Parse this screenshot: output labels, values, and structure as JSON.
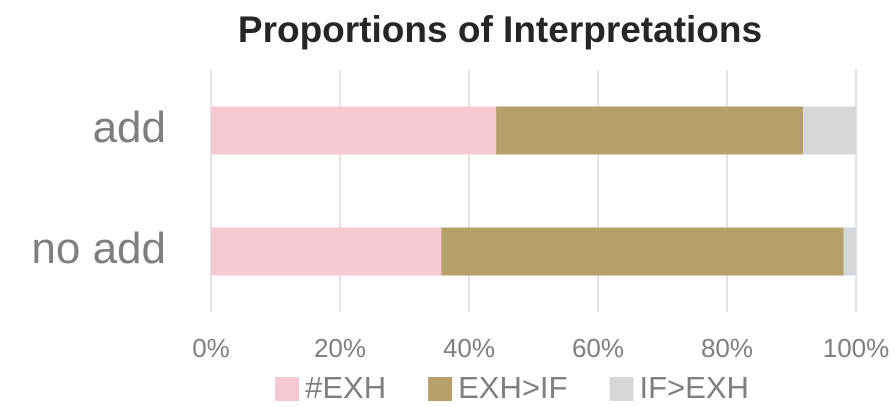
{
  "chart_data": {
    "type": "stacked_barh",
    "title": "Proportions of Interpretations",
    "categories": [
      "add",
      "no add"
    ],
    "series": [
      {
        "name": "#EXH",
        "color": "#f5c8d2",
        "values": [
          44.2,
          35.7
        ]
      },
      {
        "name": "EXH>IF",
        "color": "#b5a06a",
        "values": [
          47.6,
          62.4
        ]
      },
      {
        "name": "IF>EXH",
        "color": "#d5d8db",
        "values": [
          8.2,
          1.9
        ]
      }
    ],
    "xlim": [
      0,
      100
    ],
    "xticks": [
      {
        "value": 0,
        "label": "0%"
      },
      {
        "value": 20,
        "label": "20%"
      },
      {
        "value": 40,
        "label": "40%"
      },
      {
        "value": 60,
        "label": "60%"
      },
      {
        "value": 80,
        "label": "80%"
      },
      {
        "value": 100,
        "label": "100%"
      }
    ],
    "grid": true,
    "legend": "bottom"
  }
}
